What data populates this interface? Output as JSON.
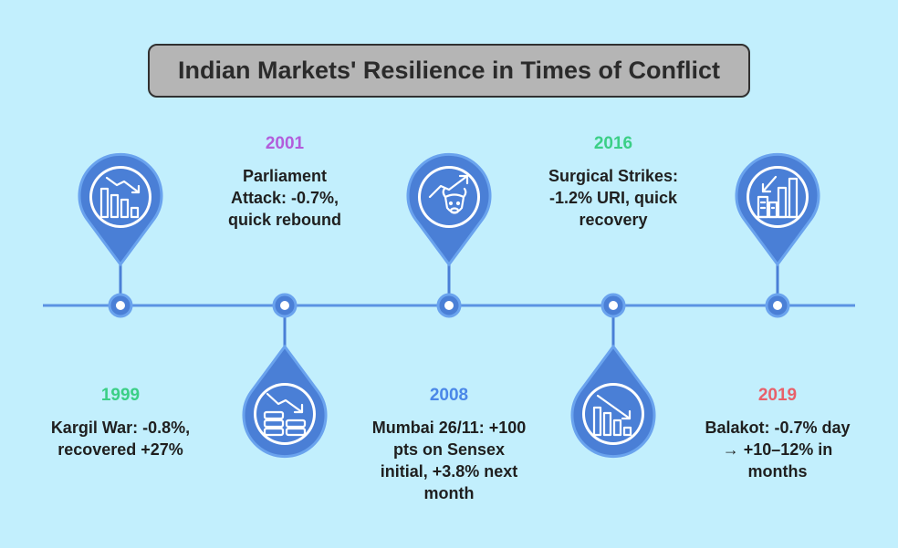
{
  "title": "Indian Markets' Resilience in Times of Conflict",
  "events": [
    {
      "year": "1999",
      "description": "Kargil War: -0.8%, recovered +27%",
      "year_color": "#3bcf86",
      "icon": "bar-chart-down-icon"
    },
    {
      "year": "2001",
      "description": "Parliament Attack: -0.7%, quick rebound",
      "year_color": "#b25ddb",
      "icon": "coins-down-icon"
    },
    {
      "year": "2008",
      "description": "Mumbai 26/11: +100 pts on Sensex initial, +3.8% next month",
      "year_color": "#4a87e8",
      "icon": "bull-trend-up-icon"
    },
    {
      "year": "2016",
      "description": "Surgical Strikes: -1.2% URI, quick recovery",
      "year_color": "#3bcf86",
      "icon": "declining-bars-icon"
    },
    {
      "year": "2019",
      "description": "Balakot: -0.7% day → +10–12% in months",
      "year_color": "#e8606a",
      "icon": "buildings-growth-icon"
    }
  ],
  "colors": {
    "background": "#c2effd",
    "marker": "#4a7fd6",
    "marker_ring": "#6aa3ee",
    "timeline": "#5b93e3"
  }
}
